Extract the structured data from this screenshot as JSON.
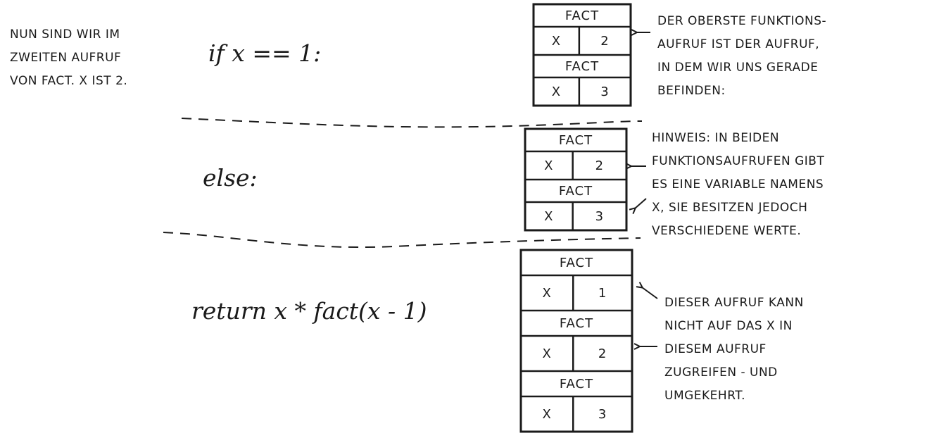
{
  "left_note": [
    "NUN SIND WIR IM",
    "ZWEITEN AUFRUF",
    "VON FACT. X IST 2."
  ],
  "code": {
    "if_line": "if x == 1:",
    "else_line": "else:",
    "return_line": "return x * fact(x - 1)"
  },
  "stack_top": {
    "frames": [
      {
        "name": "FACT",
        "var": "X",
        "value": "2"
      },
      {
        "name": "FACT",
        "var": "X",
        "value": "3"
      }
    ],
    "note": [
      "DER OBERSTE FUNKTIONS-",
      "AUFRUF IST DER AUFRUF,",
      "IN DEM WIR UNS GERADE",
      "BEFINDEN:"
    ]
  },
  "stack_mid": {
    "frames": [
      {
        "name": "FACT",
        "var": "X",
        "value": "2"
      },
      {
        "name": "FACT",
        "var": "X",
        "value": "3"
      }
    ],
    "note": [
      "HINWEIS: IN BEIDEN",
      "FUNKTIONSAUFRUFEN GIBT",
      "ES EINE VARIABLE NAMENS",
      "X, SIE BESITZEN JEDOCH",
      "VERSCHIEDENE WERTE."
    ]
  },
  "stack_bottom": {
    "frames": [
      {
        "name": "FACT",
        "var": "X",
        "value": "1"
      },
      {
        "name": "FACT",
        "var": "X",
        "value": "2"
      },
      {
        "name": "FACT",
        "var": "X",
        "value": "3"
      }
    ],
    "note": [
      "DIESER AUFRUF KANN",
      "NICHT AUF DAS X IN",
      "DIESEM AUFRUF",
      "ZUGREIFEN - UND",
      "UMGEKEHRT."
    ]
  }
}
